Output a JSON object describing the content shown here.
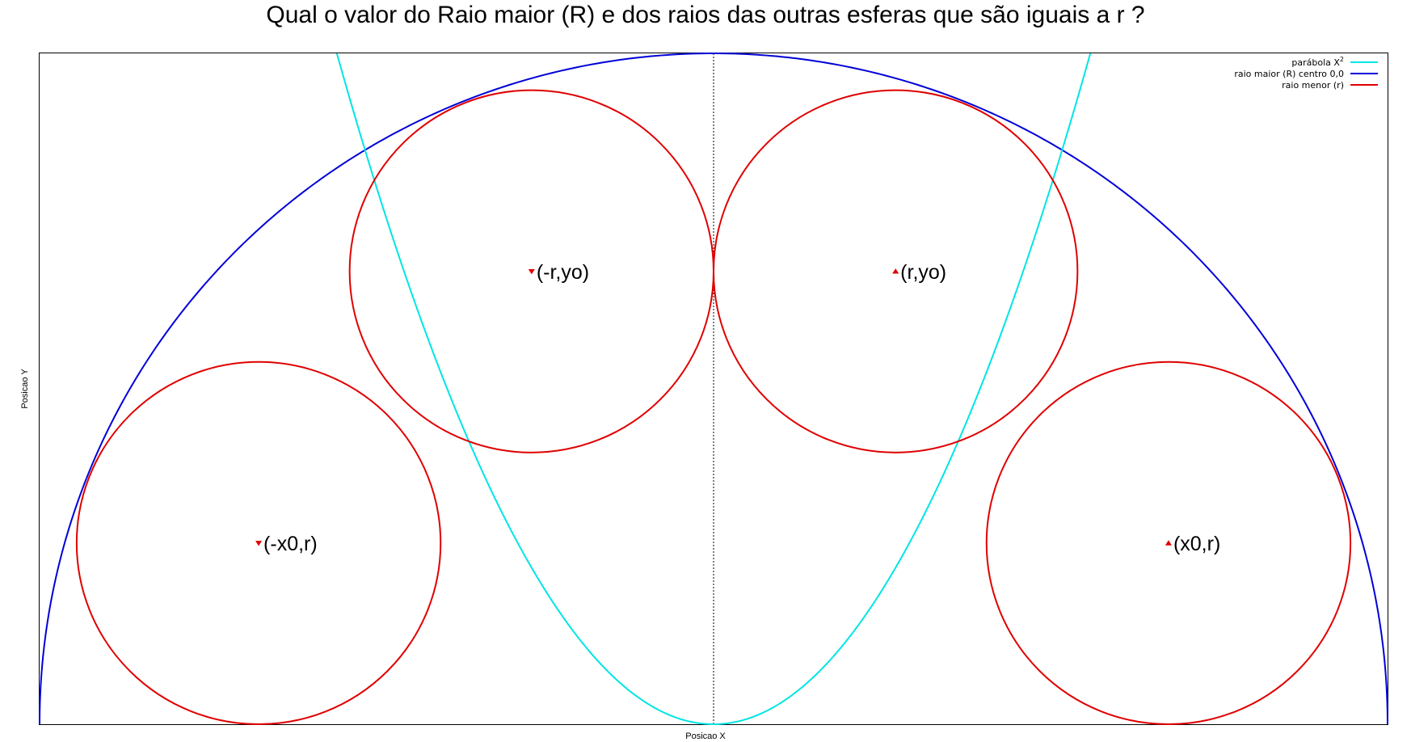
{
  "chart_data": {
    "type": "line",
    "title": "Qual o valor do Raio maior (R) e dos raios das outras esferas que são iguais a r ?",
    "xlabel": "Posicao X",
    "ylabel": "Posicao Y",
    "xlim": [
      -1,
      1
    ],
    "ylim": [
      0,
      1
    ],
    "grid": false,
    "legend_position": "top-right",
    "colors": {
      "parabola": "#00e5e5",
      "big_circle": "#0000d8",
      "small_circles": "#e00000",
      "axis_line": "#000000"
    },
    "legend": [
      {
        "name": "parábola X",
        "superscript": "2",
        "color": "#00e5e5"
      },
      {
        "name": "raio maior (R) centro 0,0",
        "color": "#0000d8"
      },
      {
        "name": "raio menor (r)",
        "color": "#e00000"
      }
    ],
    "big_circle": {
      "cx": 0,
      "cy": 0,
      "R": 1
    },
    "parabola": {
      "a": 3.2
    },
    "small_circles": [
      {
        "label": "(-x0,r)",
        "cx": -0.675,
        "cy": 0.27,
        "r": 0.27,
        "marker": "down"
      },
      {
        "label": "(-r,yo)",
        "cx": -0.27,
        "cy": 0.675,
        "r": 0.27,
        "marker": "down"
      },
      {
        "label": "(r,yo)",
        "cx": 0.27,
        "cy": 0.675,
        "r": 0.27,
        "marker": "up"
      },
      {
        "label": "(x0,r)",
        "cx": 0.675,
        "cy": 0.27,
        "r": 0.27,
        "marker": "up"
      }
    ]
  }
}
